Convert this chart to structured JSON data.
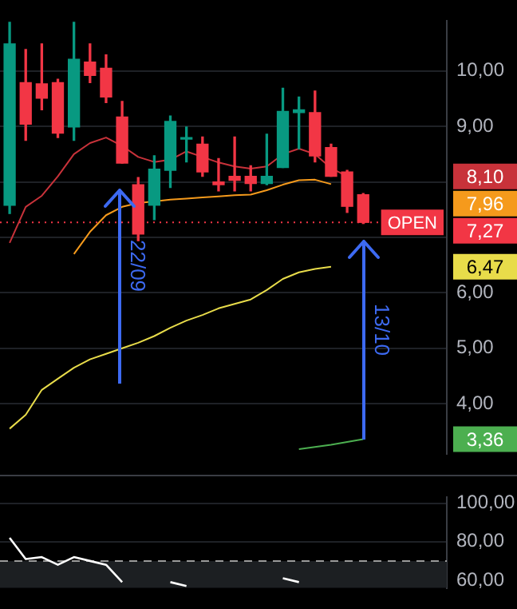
{
  "chart_data": [
    {
      "type": "candlestick",
      "categories": [
        null,
        null,
        null,
        null,
        null,
        null,
        null,
        null,
        null,
        null,
        null,
        null,
        null,
        null,
        null,
        null,
        null,
        null,
        null,
        null,
        null,
        null,
        null
      ],
      "ohlc": [
        [
          7.58,
          10.88,
          7.43,
          10.49
        ],
        [
          9.79,
          10.39,
          8.75,
          9.04
        ],
        [
          9.77,
          10.49,
          9.3,
          9.51
        ],
        [
          9.79,
          9.85,
          8.8,
          8.88
        ],
        [
          8.99,
          10.88,
          8.75,
          10.21
        ],
        [
          10.16,
          10.49,
          9.79,
          9.92
        ],
        [
          10.05,
          10.29,
          9.43,
          9.53
        ],
        [
          9.17,
          9.45,
          8.34,
          8.34
        ],
        [
          7.95,
          8.08,
          6.94,
          7.06
        ],
        [
          7.58,
          8.47,
          7.32,
          8.23
        ],
        [
          8.21,
          9.19,
          7.9,
          9.09
        ],
        [
          8.77,
          8.99,
          8.36,
          8.79
        ],
        [
          8.68,
          8.81,
          8.1,
          8.18
        ],
        [
          8.0,
          8.42,
          7.84,
          7.95
        ],
        [
          8.1,
          8.81,
          7.84,
          8.03
        ],
        [
          8.1,
          8.29,
          7.84,
          7.97
        ],
        [
          7.97,
          8.86,
          7.95,
          8.1
        ],
        [
          8.26,
          9.69,
          8.26,
          9.27
        ],
        [
          9.25,
          9.53,
          8.6,
          9.3
        ],
        [
          9.25,
          9.64,
          8.36,
          8.47
        ],
        [
          8.62,
          8.68,
          8.1,
          8.1
        ],
        [
          8.18,
          8.21,
          7.45,
          7.56
        ],
        [
          7.77,
          7.79,
          7.25,
          7.27
        ]
      ],
      "series": [
        {
          "type": "line",
          "color": "#c8323a",
          "values": [
            6.9,
            7.55,
            7.75,
            8.1,
            8.5,
            8.7,
            8.8,
            8.65,
            8.45,
            8.36,
            8.4,
            8.55,
            8.45,
            8.35,
            8.28,
            8.24,
            8.28,
            8.5,
            8.6,
            8.5,
            8.25,
            8.1,
            null
          ]
        },
        {
          "type": "line",
          "color": "#f59a1c",
          "values": [
            null,
            null,
            null,
            null,
            6.7,
            7.1,
            7.4,
            7.55,
            7.62,
            7.65,
            7.68,
            7.7,
            7.72,
            7.74,
            7.76,
            7.77,
            7.85,
            7.95,
            8.03,
            8.04,
            7.96,
            null,
            null
          ]
        },
        {
          "type": "line",
          "color": "#e8dc4a",
          "values": [
            3.55,
            3.8,
            4.25,
            4.45,
            4.65,
            4.8,
            4.9,
            5.0,
            5.1,
            5.22,
            5.37,
            5.5,
            5.6,
            5.72,
            5.8,
            5.88,
            6.05,
            6.25,
            6.37,
            6.43,
            6.47,
            null,
            null
          ]
        },
        {
          "type": "line",
          "color": "#4caf50",
          "values": [
            null,
            null,
            null,
            null,
            null,
            null,
            null,
            null,
            null,
            null,
            null,
            null,
            null,
            null,
            null,
            null,
            null,
            null,
            3.18,
            3.22,
            3.26,
            3.31,
            3.36
          ]
        }
      ],
      "ylim": [
        3.1,
        10.9
      ],
      "yticks": [
        {
          "value": 4,
          "label": "4,00"
        },
        {
          "value": 5,
          "label": "5,00"
        },
        {
          "value": 6,
          "label": "6,00"
        },
        {
          "value": 7,
          "label": null
        },
        {
          "value": 8,
          "label": null
        },
        {
          "value": 9,
          "label": "9,00"
        },
        {
          "value": 10,
          "label": "10,00"
        }
      ],
      "ref_lines": [
        {
          "axis": "y",
          "value": 7.27,
          "label": "OPEN",
          "color": "#f23645",
          "line_style": "dotted"
        }
      ],
      "annotations": [
        "22/09",
        "13/10",
        "8,10",
        "7,96",
        "7,27",
        "6,47",
        "3,36"
      ],
      "grid": "y",
      "tick_labels": "y"
    },
    {
      "type": "line",
      "categories": [
        null,
        null,
        null,
        null,
        null,
        null,
        null,
        null,
        null,
        null,
        null,
        null,
        null,
        null,
        null,
        null,
        null,
        null,
        null,
        null,
        null,
        null,
        null
      ],
      "series": [
        {
          "color": "#ffffff",
          "values": [
            82,
            71,
            72,
            68,
            72,
            70,
            68,
            59,
            null,
            null,
            59,
            57,
            null,
            null,
            null,
            null,
            null,
            61,
            59,
            null,
            null,
            null,
            null
          ]
        }
      ],
      "ylim": [
        56,
        103
      ],
      "yticks": [
        {
          "value": 60,
          "label": "60,00"
        },
        {
          "value": 80,
          "label": "80,00"
        },
        {
          "value": 100,
          "label": "100,00"
        }
      ],
      "ref_lines": [
        {
          "axis": "y",
          "value": 70,
          "line_style": "dashed",
          "color": "#9a9a9a"
        }
      ],
      "bands": [
        {
          "axis": "y",
          "from": 56,
          "to": 70,
          "color": "#1c1f22"
        }
      ],
      "grid": "y",
      "tick_labels": "y"
    }
  ]
}
